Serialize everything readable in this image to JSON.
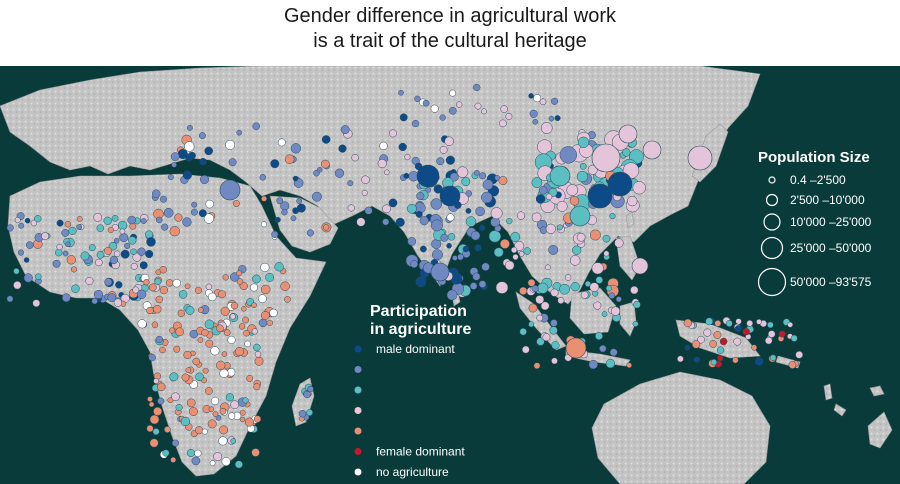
{
  "title": {
    "line1": "Gender difference in agricultural work",
    "line2": "is a trait of the cultural heritage"
  },
  "colors": {
    "ocean": "#0a3b3b",
    "land": "#c9c9c9",
    "male_dominant": "#0c4b87",
    "mostly_male": "#7189c2",
    "equal": "#5bbfc1",
    "mostly_female": "#e3c4d8",
    "female_leaning": "#ea8f72",
    "female_dominant": "#c41a28",
    "no_agriculture": "#ffffff"
  },
  "participation_legend": {
    "title_line1": "Participation",
    "title_line2": "in agriculture",
    "items": [
      {
        "label": "male dominant",
        "color": "#0c4b87"
      },
      {
        "label": "",
        "color": "#7189c2"
      },
      {
        "label": "",
        "color": "#5bbfc1"
      },
      {
        "label": "",
        "color": "#f2c6d4"
      },
      {
        "label": "",
        "color": "#ea8f72"
      },
      {
        "label": "female dominant",
        "color": "#c41a28"
      },
      {
        "label": "no agriculture",
        "color": "#ffffff"
      }
    ]
  },
  "population_legend": {
    "title": "Population Size",
    "items": [
      {
        "label": "0.4 –2'500",
        "size": 1
      },
      {
        "label": "2'500 –10'000",
        "size": 2
      },
      {
        "label": "10'000 –25'000",
        "size": 3
      },
      {
        "label": "25'000 –50'000",
        "size": 4
      },
      {
        "label": "50'000 –93'575",
        "size": 5
      }
    ]
  }
}
